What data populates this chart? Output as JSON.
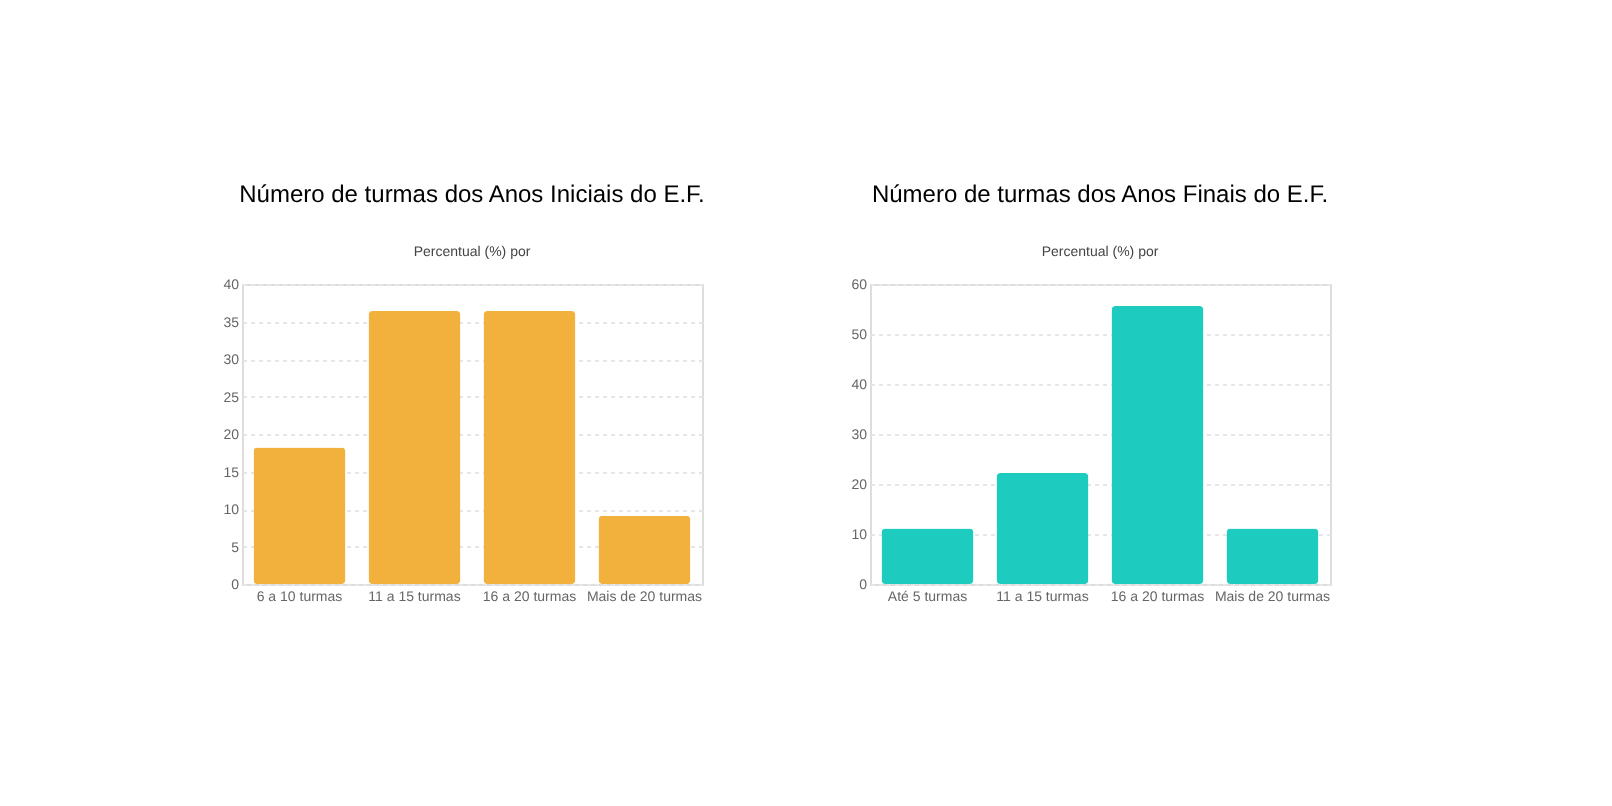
{
  "chart_data": [
    {
      "type": "bar",
      "title": "Número de turmas dos Anos Iniciais do E.F.",
      "subtitle": "Percentual (%) por",
      "categories": [
        "6 a 10 turmas",
        "11 a 15 turmas",
        "16 a 20 turmas",
        "Mais de 20 turmas"
      ],
      "values": [
        18.2,
        36.4,
        36.4,
        9.1
      ],
      "color": "#f2b13c",
      "ylim": [
        0,
        40
      ],
      "yticks": [
        0,
        5,
        10,
        15,
        20,
        25,
        30,
        35,
        40
      ],
      "grid": "y"
    },
    {
      "type": "bar",
      "title": "Número de turmas dos Anos Finais  do E.F.",
      "subtitle": "Percentual (%) por",
      "categories": [
        "Até 5 turmas",
        "11 a 15 turmas",
        "16 a 20 turmas",
        "Mais de 20 turmas"
      ],
      "values": [
        11.1,
        22.2,
        55.6,
        11.1
      ],
      "color": "#1ecbbf",
      "ylim": [
        0,
        60
      ],
      "yticks": [
        0,
        10,
        20,
        30,
        40,
        50,
        60
      ],
      "grid": "y"
    }
  ]
}
